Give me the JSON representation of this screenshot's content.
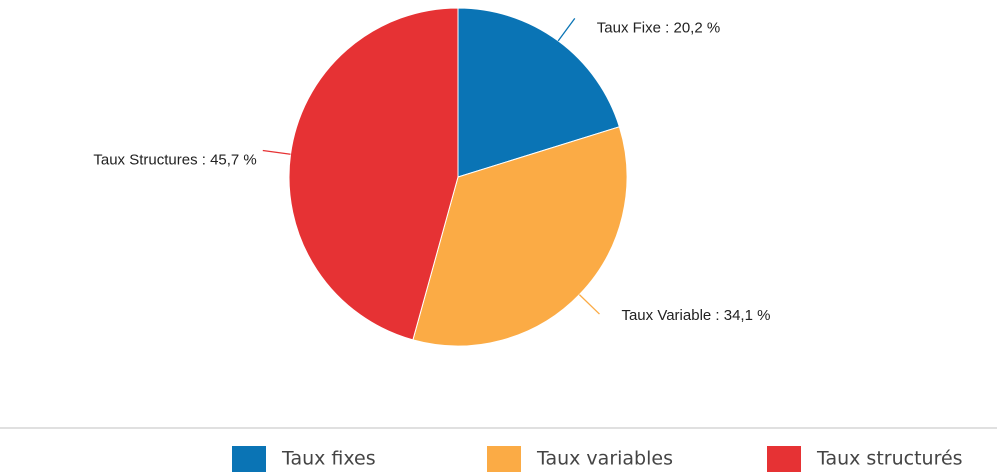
{
  "chart_data": {
    "type": "pie",
    "categories": [
      "Taux fixes",
      "Taux variables",
      "Taux structurés"
    ],
    "values": [
      20.2,
      34.1,
      45.7
    ],
    "value_labels": [
      "Taux Fixe : 20,2 %",
      "Taux Variable : 34,1 %",
      "Taux Structures : 45,7 %"
    ],
    "colors": [
      "#0a74b5",
      "#fbab45",
      "#e63234"
    ]
  }
}
